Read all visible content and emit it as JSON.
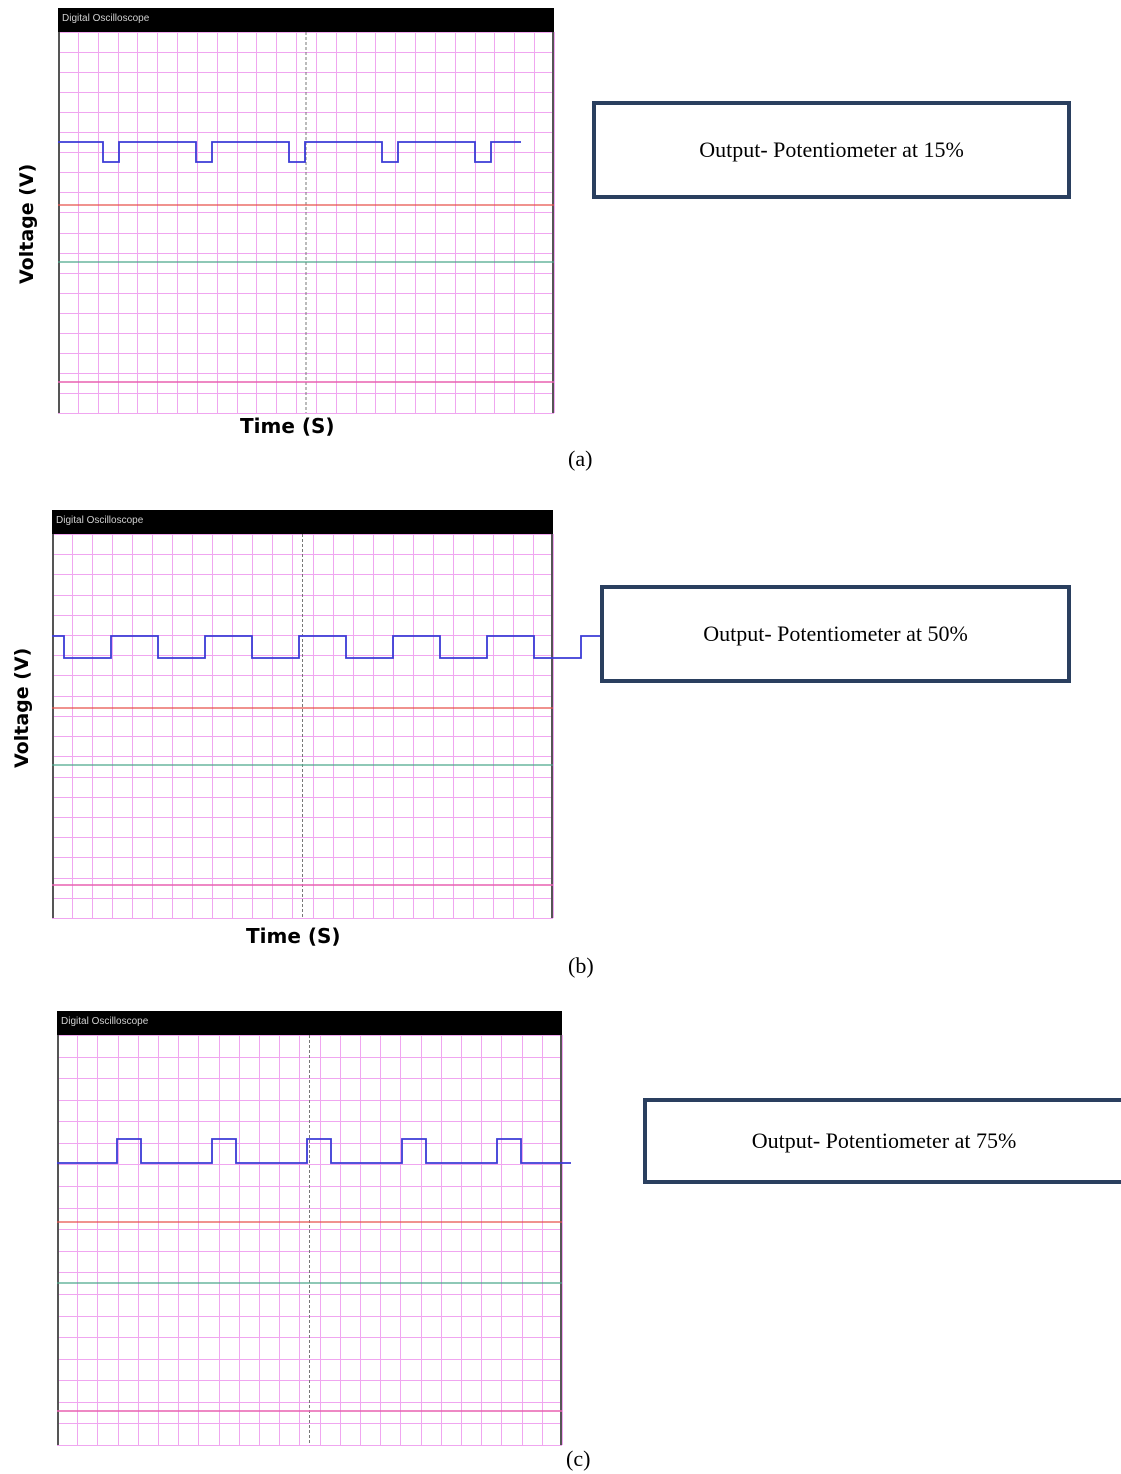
{
  "title_bar_text": "Digital Oscilloscope",
  "colors": {
    "grid": "#f0a6f0",
    "signal": "#3b3bd6",
    "red_trace": "#e8504a",
    "green_trace": "#4aa88a",
    "pink_trace": "#e860b0",
    "box_border": "#2a3f5f"
  },
  "panels": [
    {
      "caption": "(a)",
      "note": "Output- Potentiometer at 15%",
      "ylabel": "Voltage (V)",
      "xlabel": "Time (S)"
    },
    {
      "caption": "(b)",
      "note": "Output- Potentiometer at 50%",
      "ylabel": "Voltage (V)",
      "xlabel": "Time (S)"
    },
    {
      "caption": "(c)",
      "note": "Output- Potentiometer at 75%",
      "ylabel": "",
      "xlabel": ""
    }
  ],
  "chart_data": [
    {
      "type": "line",
      "series": [
        {
          "waveform": "square",
          "periods_visible": 5.25,
          "duty_percent_low": 15
        }
      ],
      "grid": true
    },
    {
      "type": "line",
      "series": [
        {
          "waveform": "square",
          "periods_visible": 5.25,
          "duty_percent_high": 50
        }
      ],
      "grid": true
    },
    {
      "type": "line",
      "series": [
        {
          "waveform": "square",
          "periods_visible": 5.25,
          "duty_percent_high": 25
        }
      ],
      "grid": true
    }
  ]
}
